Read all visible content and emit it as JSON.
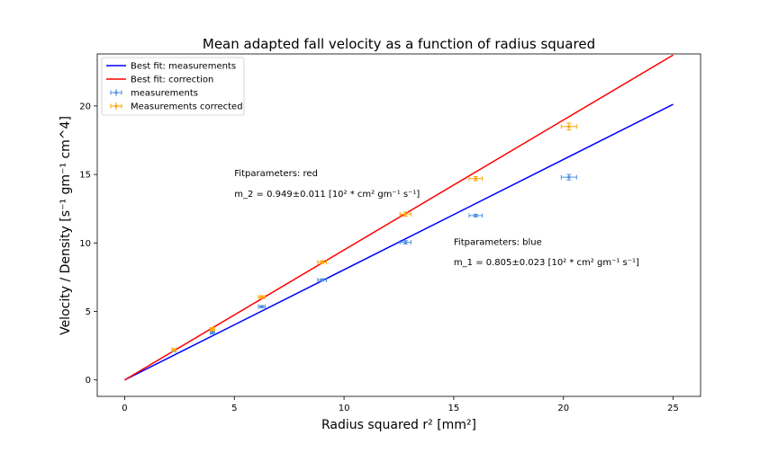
{
  "chart_data": {
    "type": "scatter",
    "title": "Mean adapted fall velocity as a function of radius squared",
    "xlabel": "Radius squared r² [mm²]",
    "ylabel": "Velocity / Density [s⁻¹  gm⁻¹ cm^4]",
    "xlim": [
      -1.25,
      26.25
    ],
    "ylim": [
      -1.2,
      23.8
    ],
    "xticks": [
      0,
      5,
      10,
      15,
      20,
      25
    ],
    "yticks": [
      0,
      5,
      10,
      15,
      20
    ],
    "grid": false,
    "legend_position": "top-left",
    "lines": [
      {
        "name": "Best fit: measurements",
        "color": "#0000ff",
        "x": [
          0,
          25
        ],
        "y": [
          0,
          20.12
        ]
      },
      {
        "name": "Best fit: correction",
        "color": "#ff0000",
        "x": [
          0,
          25
        ],
        "y": [
          0,
          23.72
        ]
      }
    ],
    "series": [
      {
        "name": "measurements",
        "color": "#4a90e2",
        "points": [
          {
            "x": 2.25,
            "y": 2.15,
            "xerr": 0.08,
            "yerr": 0.07
          },
          {
            "x": 4.0,
            "y": 3.45,
            "xerr": 0.1,
            "yerr": 0.08
          },
          {
            "x": 6.25,
            "y": 5.35,
            "xerr": 0.15,
            "yerr": 0.08
          },
          {
            "x": 9.0,
            "y": 7.3,
            "xerr": 0.2,
            "yerr": 0.08
          },
          {
            "x": 12.8,
            "y": 10.05,
            "xerr": 0.25,
            "yerr": 0.12
          },
          {
            "x": 16.0,
            "y": 12.0,
            "xerr": 0.3,
            "yerr": 0.1
          },
          {
            "x": 20.25,
            "y": 14.8,
            "xerr": 0.35,
            "yerr": 0.2
          }
        ]
      },
      {
        "name": "Measurements corrected",
        "color": "#ffa500",
        "points": [
          {
            "x": 2.25,
            "y": 2.2,
            "xerr": 0.08,
            "yerr": 0.07
          },
          {
            "x": 4.0,
            "y": 3.7,
            "xerr": 0.1,
            "yerr": 0.12
          },
          {
            "x": 6.25,
            "y": 6.05,
            "xerr": 0.15,
            "yerr": 0.1
          },
          {
            "x": 9.0,
            "y": 8.6,
            "xerr": 0.2,
            "yerr": 0.1
          },
          {
            "x": 12.8,
            "y": 12.1,
            "xerr": 0.25,
            "yerr": 0.15
          },
          {
            "x": 16.0,
            "y": 14.7,
            "xerr": 0.3,
            "yerr": 0.15
          },
          {
            "x": 20.25,
            "y": 18.5,
            "xerr": 0.35,
            "yerr": 0.25
          }
        ]
      }
    ],
    "annotations": [
      {
        "text": "Fitparameters: red",
        "x": 5.0,
        "y": 15.1
      },
      {
        "text": "m_2 = 0.949±0.011 [10² * cm² gm⁻¹ s⁻¹]",
        "x": 5.0,
        "y": 13.6
      },
      {
        "text": "Fitparameters: blue",
        "x": 15.0,
        "y": 10.1
      },
      {
        "text": "m_1 = 0.805±0.023 [10² * cm² gm⁻¹ s⁻¹]",
        "x": 15.0,
        "y": 8.6
      }
    ]
  }
}
